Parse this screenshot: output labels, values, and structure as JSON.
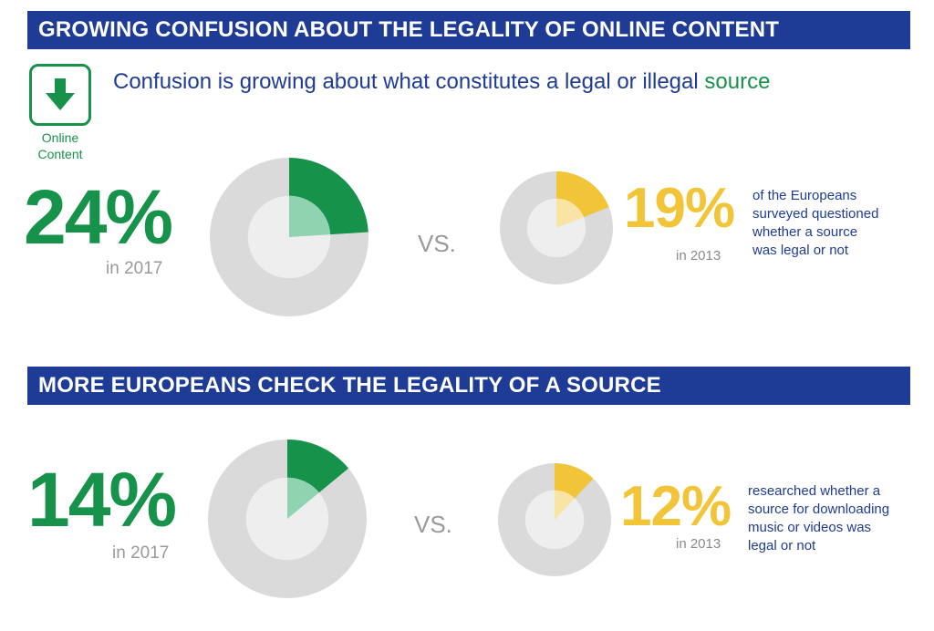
{
  "section1": {
    "title": "GROWING CONFUSION ABOUT THE LEGALITY OF ONLINE CONTENT",
    "subtitle_main": "Confusion is growing about what constitutes a legal or illegal ",
    "subtitle_accent": "source",
    "icon_name": "download-arrow-icon",
    "icon_caption_line1": "Online",
    "icon_caption_line2": "Content",
    "big_value": "24%",
    "big_year": "in 2017",
    "vs": "VS.",
    "small_value": "19%",
    "small_year": "in 2013",
    "description": [
      "of the Europeans",
      "surveyed questioned",
      "whether a source",
      "was legal or not"
    ]
  },
  "section2": {
    "title": "MORE EUROPEANS CHECK THE LEGALITY OF A SOURCE",
    "big_value": "14%",
    "big_year": "in 2017",
    "vs": "VS.",
    "small_value": "12%",
    "small_year": "in 2013",
    "description": [
      "researched whether a",
      "source for downloading",
      "music or videos was",
      "legal or not"
    ]
  },
  "colors": {
    "banner": "#1e3c96",
    "green": "#16924a",
    "green_light": "#8fd3b0",
    "yellow": "#f2c438",
    "yellow_light": "#f8e4a4",
    "ring_gray": "#dadada",
    "inner_gray": "#eeeeee"
  },
  "chart_data": [
    {
      "type": "pie",
      "title": "GROWING CONFUSION ABOUT THE LEGALITY OF ONLINE CONTENT",
      "series": [
        {
          "name": "in 2017",
          "values": [
            24
          ]
        },
        {
          "name": "in 2013",
          "values": [
            19
          ]
        }
      ],
      "unit": "%"
    },
    {
      "type": "pie",
      "title": "MORE EUROPEANS CHECK THE LEGALITY OF A SOURCE",
      "series": [
        {
          "name": "in 2017",
          "values": [
            14
          ]
        },
        {
          "name": "in 2013",
          "values": [
            12
          ]
        }
      ],
      "unit": "%"
    }
  ]
}
